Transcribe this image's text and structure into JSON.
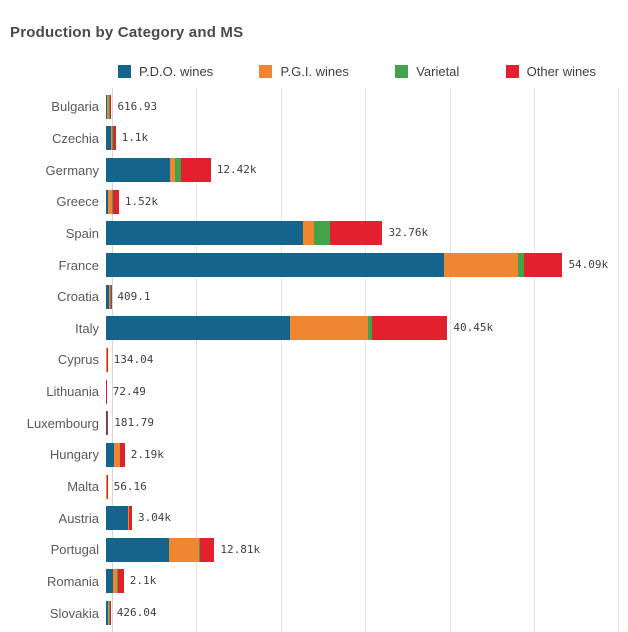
{
  "title": "Production by Category and MS",
  "chart_data": {
    "type": "bar",
    "orientation": "horizontal",
    "stacked": true,
    "title": "Production by Category and MS",
    "legend_position": "top",
    "grid": true,
    "categories": [
      "Bulgaria",
      "Czechia",
      "Germany",
      "Greece",
      "Spain",
      "France",
      "Croatia",
      "Italy",
      "Cyprus",
      "Lithuania",
      "Luxembourg",
      "Hungary",
      "Malta",
      "Austria",
      "Portugal",
      "Romania",
      "Slovakia"
    ],
    "series": [
      {
        "name": "P.D.O. wines",
        "color": "#15648d",
        "values": [
          70,
          650,
          7590,
          180,
          23300,
          40100,
          350,
          21800,
          0,
          0,
          170,
          950,
          0,
          2550,
          7500,
          850,
          280
        ]
      },
      {
        "name": "P.G.I. wines",
        "color": "#ef8632",
        "values": [
          250,
          120,
          545,
          590,
          1400,
          8700,
          20,
          9300,
          45,
          0,
          0,
          650,
          20,
          130,
          3500,
          400,
          40
        ]
      },
      {
        "name": "Varietal",
        "color": "#44a348",
        "values": [
          110,
          50,
          710,
          90,
          1800,
          700,
          9,
          480,
          0,
          0,
          0,
          60,
          0,
          60,
          60,
          150,
          20
        ]
      },
      {
        "name": "Other wines",
        "color": "#e2202e",
        "values": [
          190,
          280,
          3575,
          660,
          6260,
          4590,
          30,
          8870,
          89,
          72,
          12,
          530,
          36,
          300,
          1750,
          700,
          86
        ]
      }
    ],
    "total_labels": [
      "616.93",
      "1.1k",
      "12.42k",
      "1.52k",
      "32.76k",
      "54.09k",
      "409.1",
      "40.45k",
      "134.04",
      "72.49",
      "181.79",
      "2.19k",
      "56.16",
      "3.04k",
      "12.81k",
      "2.1k",
      "426.04"
    ],
    "totals": [
      616.93,
      1100,
      12420,
      1520,
      32760,
      54090,
      409.1,
      40450,
      134.04,
      72.49,
      181.79,
      2190,
      56.16,
      3040,
      12810,
      2100,
      426.04
    ],
    "x_axis": {
      "min": 0,
      "max": 60200,
      "gridline_step": 10000,
      "tick_labels_visible": false
    }
  },
  "colors": {
    "background": "#ffffff",
    "title_text": "#4a4a4a",
    "category_text": "#595959",
    "value_text": "#404040",
    "gridline": "#e4e4e4",
    "axis_line": "#d6d6d6"
  }
}
